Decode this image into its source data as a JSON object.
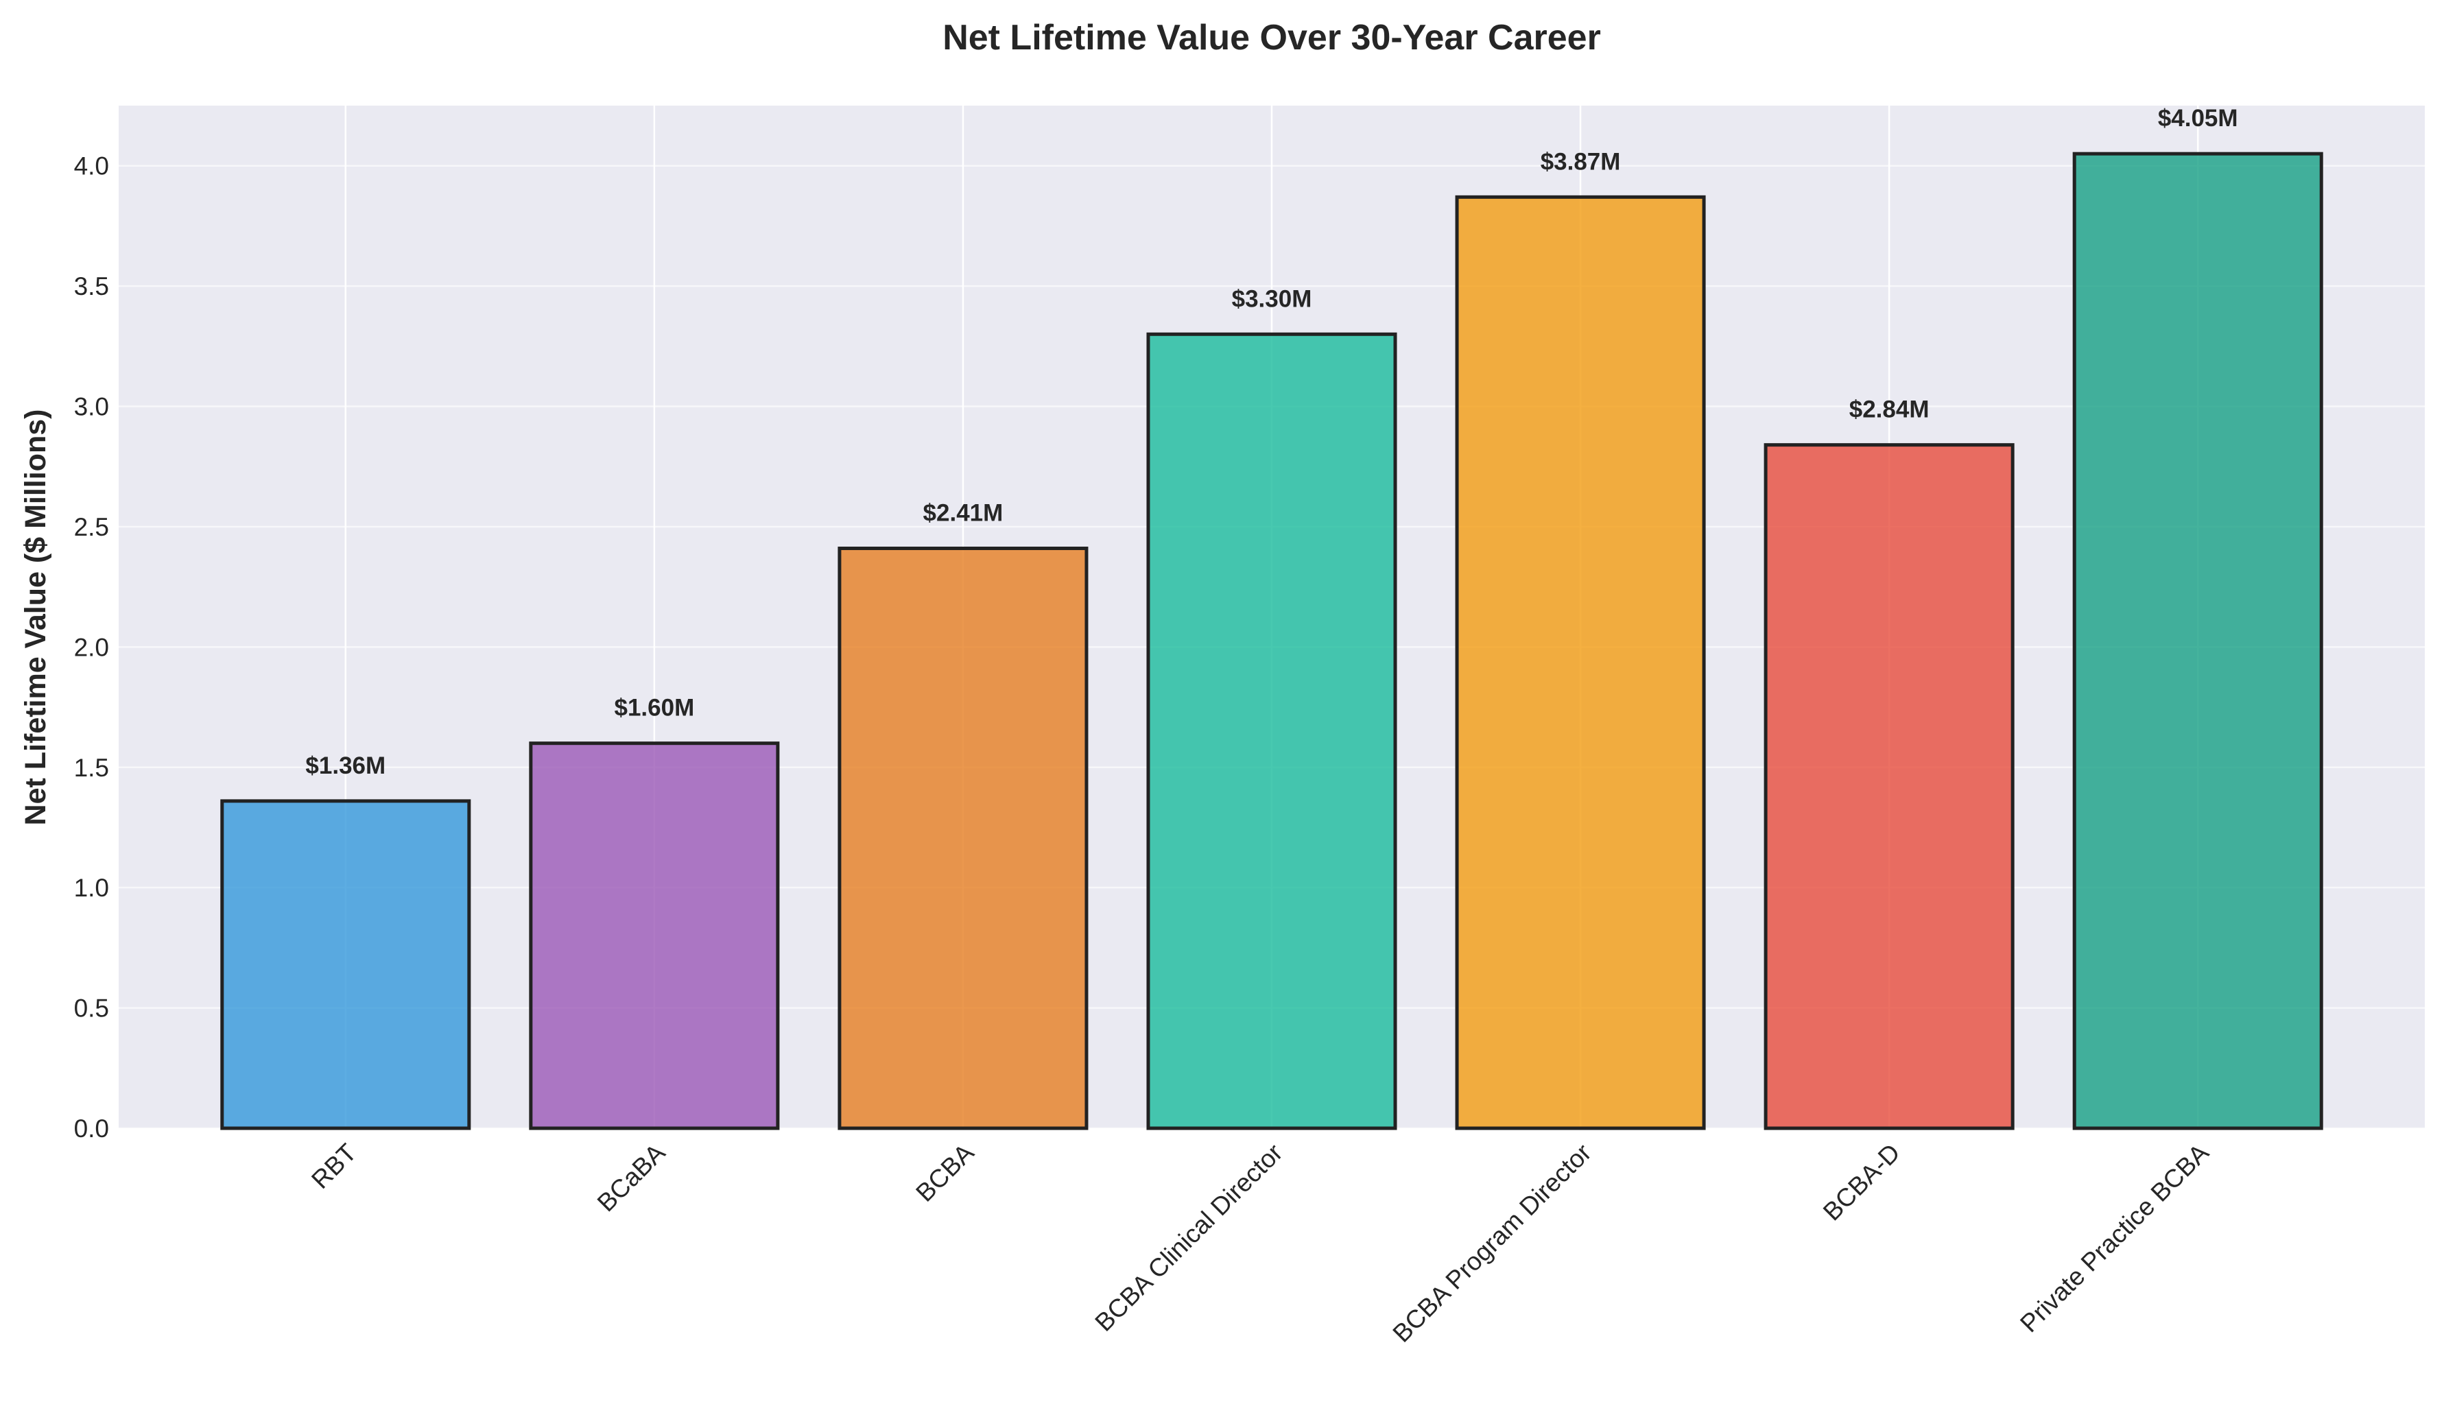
{
  "chart_data": {
    "type": "bar",
    "title": "Net Lifetime Value Over 30-Year Career",
    "xlabel": "",
    "ylabel": "Net Lifetime Value ($ Millions)",
    "ylim": [
      0,
      4.25
    ],
    "yticks": [
      "0.0",
      "0.5",
      "1.0",
      "1.5",
      "2.0",
      "2.5",
      "3.0",
      "3.5",
      "4.0"
    ],
    "grid": true,
    "categories": [
      "RBT",
      "BCaBA",
      "BCBA",
      "BCBA Clinical Director",
      "BCBA Program Director",
      "BCBA-D",
      "Private Practice BCBA"
    ],
    "values": [
      1.36,
      1.6,
      2.41,
      3.3,
      3.87,
      2.84,
      4.05
    ],
    "data_labels": [
      "$1.36M",
      "$1.60M",
      "$2.41M",
      "$3.30M",
      "$3.87M",
      "$2.84M",
      "$4.05M"
    ],
    "colors": [
      "#3498db",
      "#9b59b6",
      "#e67e22",
      "#1abc9c",
      "#f39c12",
      "#e74c3c",
      "#16a085"
    ],
    "bar_edge_color": "#222222",
    "background_color": "#eaeaf2"
  }
}
